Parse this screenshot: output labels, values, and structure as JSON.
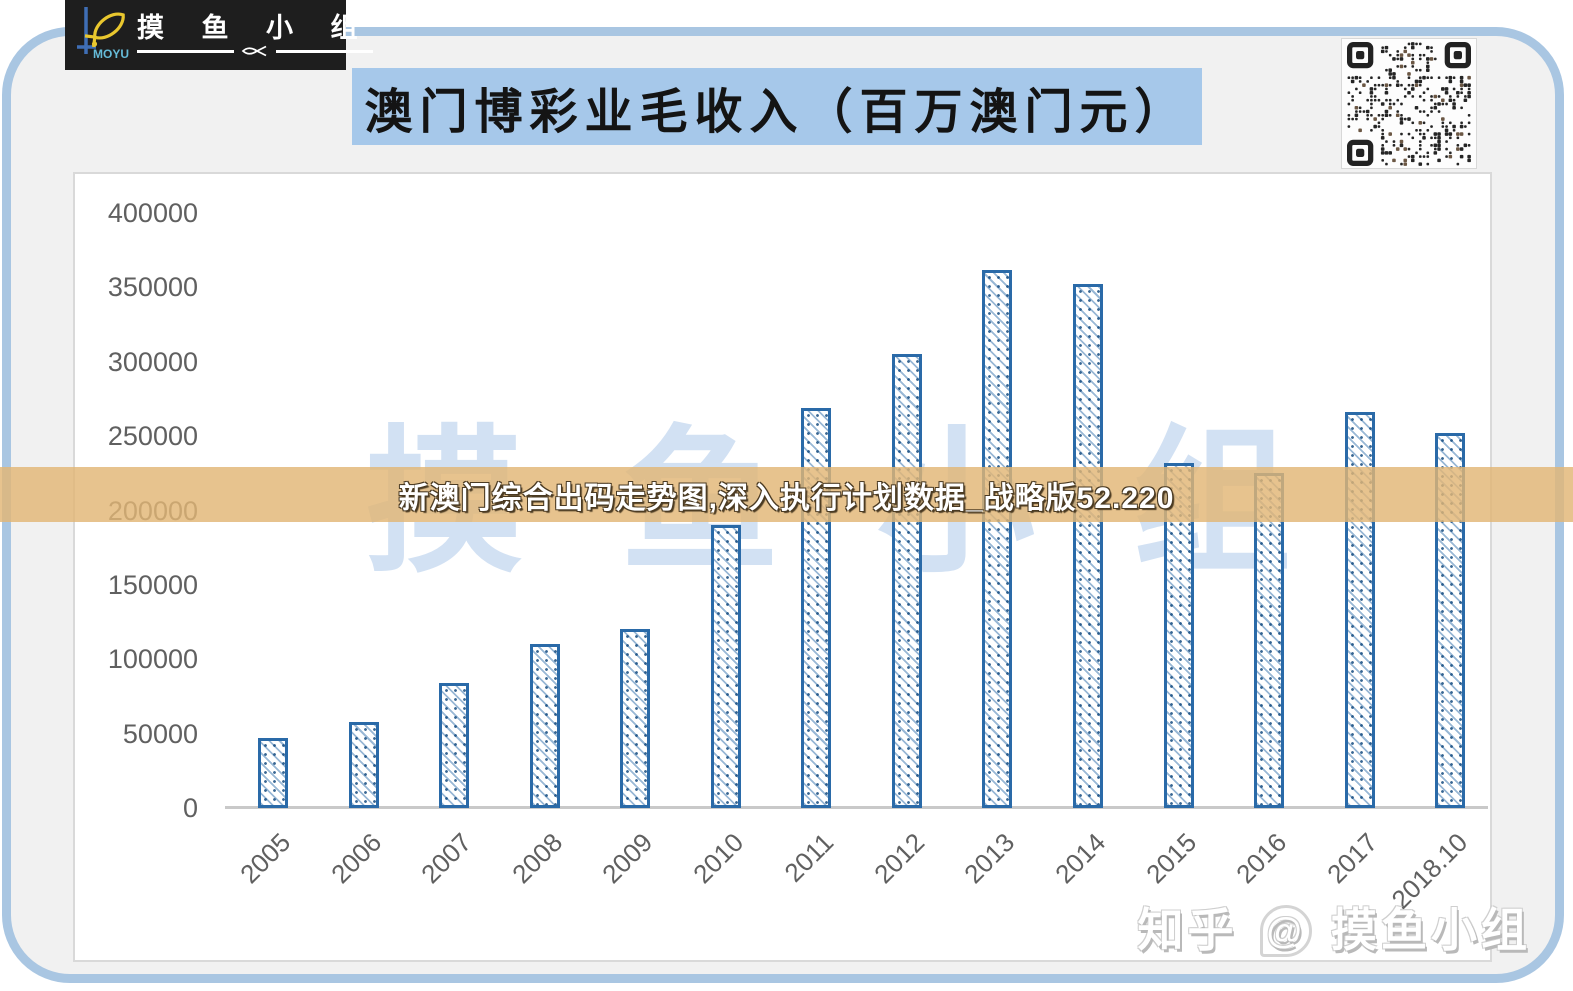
{
  "logo": {
    "brand": "MOYU",
    "name": "摸 鱼 小 组"
  },
  "header": {
    "title": "澳门博彩业毛收入（百万澳门元）"
  },
  "overlay_band": {
    "text": "新澳门综合出码走势图,深入执行计划数据_战略版52.220",
    "color": "#e2b675"
  },
  "watermarks": {
    "plot_background": "摸鱼小组",
    "corner_prefix": "知乎",
    "corner_at": "@",
    "corner_suffix": "摸鱼小组"
  },
  "icons": {
    "qr_code": "qr-code",
    "fish_logo": "fish-logo"
  },
  "colors": {
    "banner_blue": "#a6c8ea",
    "frame_blue": "#a9c6e2",
    "bar_border_blue": "#2a6aa8",
    "band_tan": "rgba(226,182,117,0.82)",
    "axis_gray": "#606060",
    "watermark_blue": "#d2e1f3"
  },
  "chart_data": {
    "type": "bar",
    "title": "澳门博彩业毛收入（百万澳门元）",
    "xlabel": "",
    "ylabel": "",
    "categories": [
      "2005",
      "2006",
      "2007",
      "2008",
      "2009",
      "2010",
      "2011",
      "2012",
      "2013",
      "2014",
      "2015",
      "2016",
      "2017",
      "2018.10"
    ],
    "values": [
      47000,
      57500,
      84000,
      110000,
      120000,
      190000,
      269000,
      305000,
      362000,
      352000,
      232000,
      225000,
      266000,
      252000
    ],
    "ylim": [
      0,
      400000
    ],
    "ytick_interval": 50000,
    "yticks": [
      "400000",
      "350000",
      "300000",
      "250000",
      "200000",
      "150000",
      "100000",
      "50000",
      "0"
    ],
    "grid": false,
    "legend": null,
    "bar_pattern": "diagonal-hatch",
    "x_label_rotation_deg": -45
  }
}
